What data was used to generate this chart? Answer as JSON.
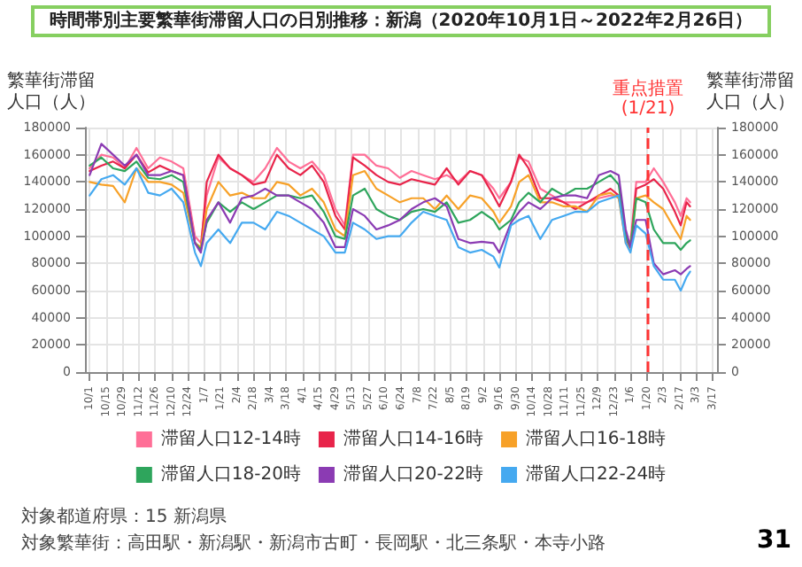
{
  "chart_data": {
    "type": "line",
    "title": "時間帯別主要繁華街滞留人口の日別推移：新潟（2020年10月1日～2022年2月26日）",
    "ylabel": "繁華街滞留人口（人）",
    "y2label": "繁華街滞留人口（人）",
    "x": [
      "2020-10-01",
      "2020-10-11",
      "2020-10-21",
      "2020-10-31",
      "2020-11-10",
      "2020-11-20",
      "2020-11-30",
      "2020-12-10",
      "2020-12-20",
      "2020-12-30",
      "2021-01-04",
      "2021-01-09",
      "2021-01-19",
      "2021-01-29",
      "2021-02-08",
      "2021-02-18",
      "2021-02-28",
      "2021-03-10",
      "2021-03-20",
      "2021-03-30",
      "2021-04-09",
      "2021-04-19",
      "2021-04-29",
      "2021-05-07",
      "2021-05-14",
      "2021-05-24",
      "2021-06-03",
      "2021-06-13",
      "2021-06-23",
      "2021-07-03",
      "2021-07-13",
      "2021-07-23",
      "2021-08-02",
      "2021-08-12",
      "2021-08-22",
      "2021-09-01",
      "2021-09-11",
      "2021-09-16",
      "2021-09-26",
      "2021-10-03",
      "2021-10-11",
      "2021-10-21",
      "2021-10-31",
      "2021-11-10",
      "2021-11-20",
      "2021-11-30",
      "2021-12-10",
      "2021-12-20",
      "2021-12-27",
      "2022-01-02",
      "2022-01-06",
      "2022-01-11",
      "2022-01-19",
      "2022-01-26",
      "2022-02-03",
      "2022-02-13",
      "2022-02-18",
      "2022-02-23",
      "2022-02-26"
    ],
    "series": [
      {
        "name": "滞留人口12-14時",
        "color": "#ff6f97",
        "values": [
          150000,
          160000,
          158000,
          150000,
          165000,
          150000,
          158000,
          155000,
          150000,
          100000,
          95000,
          130000,
          158000,
          150000,
          145000,
          140000,
          150000,
          165000,
          155000,
          150000,
          155000,
          145000,
          120000,
          108000,
          160000,
          160000,
          152000,
          150000,
          143000,
          148000,
          145000,
          142000,
          145000,
          140000,
          148000,
          145000,
          135000,
          128000,
          140000,
          158000,
          155000,
          135000,
          130000,
          125000,
          125000,
          125000,
          128000,
          130000,
          130000,
          100000,
          95000,
          140000,
          140000,
          150000,
          140000,
          125000,
          115000,
          128000,
          125000
        ]
      },
      {
        "name": "滞留人口14-16時",
        "color": "#e8244a",
        "values": [
          148000,
          152000,
          155000,
          150000,
          160000,
          147000,
          152000,
          148000,
          145000,
          95000,
          90000,
          140000,
          160000,
          150000,
          145000,
          138000,
          140000,
          160000,
          150000,
          145000,
          152000,
          140000,
          115000,
          105000,
          158000,
          152000,
          145000,
          140000,
          138000,
          142000,
          140000,
          138000,
          150000,
          138000,
          148000,
          145000,
          130000,
          122000,
          140000,
          160000,
          150000,
          128000,
          128000,
          125000,
          120000,
          125000,
          130000,
          135000,
          130000,
          98000,
          92000,
          135000,
          138000,
          142000,
          135000,
          118000,
          108000,
          125000,
          122000
        ]
      },
      {
        "name": "滞留人口16-18時",
        "color": "#f7a128",
        "values": [
          140000,
          138000,
          137000,
          125000,
          150000,
          140000,
          140000,
          138000,
          132000,
          95000,
          92000,
          120000,
          140000,
          130000,
          132000,
          128000,
          128000,
          140000,
          138000,
          130000,
          135000,
          125000,
          105000,
          100000,
          145000,
          148000,
          135000,
          130000,
          125000,
          128000,
          128000,
          120000,
          130000,
          120000,
          130000,
          128000,
          118000,
          110000,
          122000,
          140000,
          145000,
          125000,
          125000,
          122000,
          122000,
          118000,
          130000,
          132000,
          128000,
          95000,
          90000,
          128000,
          130000,
          125000,
          120000,
          105000,
          98000,
          115000,
          112000
        ]
      },
      {
        "name": "滞留人口18-20時",
        "color": "#2ea55c",
        "values": [
          152000,
          158000,
          150000,
          148000,
          155000,
          143000,
          142000,
          145000,
          140000,
          95000,
          90000,
          110000,
          125000,
          118000,
          125000,
          120000,
          125000,
          130000,
          130000,
          128000,
          130000,
          118000,
          100000,
          98000,
          130000,
          135000,
          120000,
          115000,
          112000,
          118000,
          120000,
          118000,
          125000,
          110000,
          112000,
          118000,
          112000,
          105000,
          112000,
          125000,
          132000,
          125000,
          135000,
          130000,
          135000,
          135000,
          140000,
          145000,
          138000,
          100000,
          92000,
          128000,
          125000,
          105000,
          95000,
          95000,
          90000,
          95000,
          97000
        ]
      },
      {
        "name": "滞留人口20-22時",
        "color": "#8b3bb3",
        "values": [
          145000,
          168000,
          160000,
          152000,
          160000,
          145000,
          145000,
          148000,
          145000,
          95000,
          88000,
          112000,
          125000,
          110000,
          128000,
          130000,
          135000,
          130000,
          130000,
          125000,
          120000,
          110000,
          92000,
          92000,
          120000,
          115000,
          105000,
          108000,
          112000,
          120000,
          125000,
          128000,
          122000,
          98000,
          95000,
          96000,
          95000,
          88000,
          110000,
          118000,
          125000,
          120000,
          128000,
          130000,
          130000,
          128000,
          145000,
          148000,
          145000,
          105000,
          92000,
          112000,
          112000,
          80000,
          72000,
          75000,
          72000,
          76000,
          78000
        ]
      },
      {
        "name": "滞留人口22-24時",
        "color": "#45a9f0",
        "values": [
          130000,
          142000,
          145000,
          138000,
          150000,
          132000,
          130000,
          135000,
          125000,
          88000,
          78000,
          95000,
          105000,
          95000,
          110000,
          110000,
          105000,
          118000,
          115000,
          110000,
          105000,
          100000,
          88000,
          88000,
          110000,
          105000,
          98000,
          100000,
          100000,
          110000,
          118000,
          115000,
          112000,
          92000,
          88000,
          90000,
          85000,
          77000,
          108000,
          112000,
          115000,
          98000,
          112000,
          115000,
          118000,
          118000,
          125000,
          128000,
          130000,
          95000,
          88000,
          108000,
          102000,
          78000,
          68000,
          68000,
          60000,
          70000,
          74000
        ]
      }
    ],
    "ylim": [
      0,
      180000
    ],
    "yticks": [
      0,
      20000,
      40000,
      60000,
      80000,
      100000,
      120000,
      140000,
      160000,
      180000
    ],
    "y2lim": [
      0,
      180000
    ],
    "y2ticks": [
      0,
      20000,
      40000,
      60000,
      80000,
      100000,
      120000,
      140000,
      160000,
      180000
    ],
    "xlim": [
      "2020-09-27",
      "2022-03-21"
    ],
    "xticks": [
      {
        "value": "2020-10-01",
        "label": "10/1"
      },
      {
        "value": "2020-10-15",
        "label": "10/15"
      },
      {
        "value": "2020-10-29",
        "label": "10/29"
      },
      {
        "value": "2020-11-12",
        "label": "11/12"
      },
      {
        "value": "2020-11-26",
        "label": "11/26"
      },
      {
        "value": "2020-12-10",
        "label": "12/10"
      },
      {
        "value": "2020-12-24",
        "label": "12/24"
      },
      {
        "value": "2021-01-07",
        "label": "1/7"
      },
      {
        "value": "2021-01-21",
        "label": "1/21"
      },
      {
        "value": "2021-02-04",
        "label": "2/4"
      },
      {
        "value": "2021-02-18",
        "label": "2/18"
      },
      {
        "value": "2021-03-04",
        "label": "3/4"
      },
      {
        "value": "2021-03-18",
        "label": "3/18"
      },
      {
        "value": "2021-04-01",
        "label": "4/1"
      },
      {
        "value": "2021-04-15",
        "label": "4/15"
      },
      {
        "value": "2021-04-29",
        "label": "4/29"
      },
      {
        "value": "2021-05-13",
        "label": "5/13"
      },
      {
        "value": "2021-05-27",
        "label": "5/27"
      },
      {
        "value": "2021-06-10",
        "label": "6/10"
      },
      {
        "value": "2021-06-24",
        "label": "6/24"
      },
      {
        "value": "2021-07-08",
        "label": "7/8"
      },
      {
        "value": "2021-07-22",
        "label": "7/22"
      },
      {
        "value": "2021-08-05",
        "label": "8/5"
      },
      {
        "value": "2021-08-19",
        "label": "8/19"
      },
      {
        "value": "2021-09-02",
        "label": "9/2"
      },
      {
        "value": "2021-09-16",
        "label": "9/16"
      },
      {
        "value": "2021-09-30",
        "label": "9/30"
      },
      {
        "value": "2021-10-14",
        "label": "10/14"
      },
      {
        "value": "2021-10-28",
        "label": "10/28"
      },
      {
        "value": "2021-11-11",
        "label": "11/11"
      },
      {
        "value": "2021-11-25",
        "label": "11/25"
      },
      {
        "value": "2021-12-09",
        "label": "12/9"
      },
      {
        "value": "2021-12-23",
        "label": "12/23"
      },
      {
        "value": "2022-01-06",
        "label": "1/6"
      },
      {
        "value": "2022-01-20",
        "label": "1/20"
      },
      {
        "value": "2022-02-03",
        "label": "2/3"
      },
      {
        "value": "2022-02-17",
        "label": "2/17"
      },
      {
        "value": "2022-03-03",
        "label": "3/3"
      },
      {
        "value": "2022-03-17",
        "label": "3/17"
      }
    ],
    "ref_lines": [
      {
        "axis": "x",
        "value": "2022-01-21",
        "label": "重点措置(1/21)",
        "color": "#ff3333",
        "line_style": "dashed"
      }
    ],
    "annotations": [
      "対象都道府県：15 新潟県",
      "対象繁華街：高田駅・新潟駅・新潟市古町・長岡駅・北三条駅・本寺小路",
      "31"
    ],
    "grid": true,
    "legend": "bottom",
    "marker": "none",
    "line_style": "solid"
  }
}
